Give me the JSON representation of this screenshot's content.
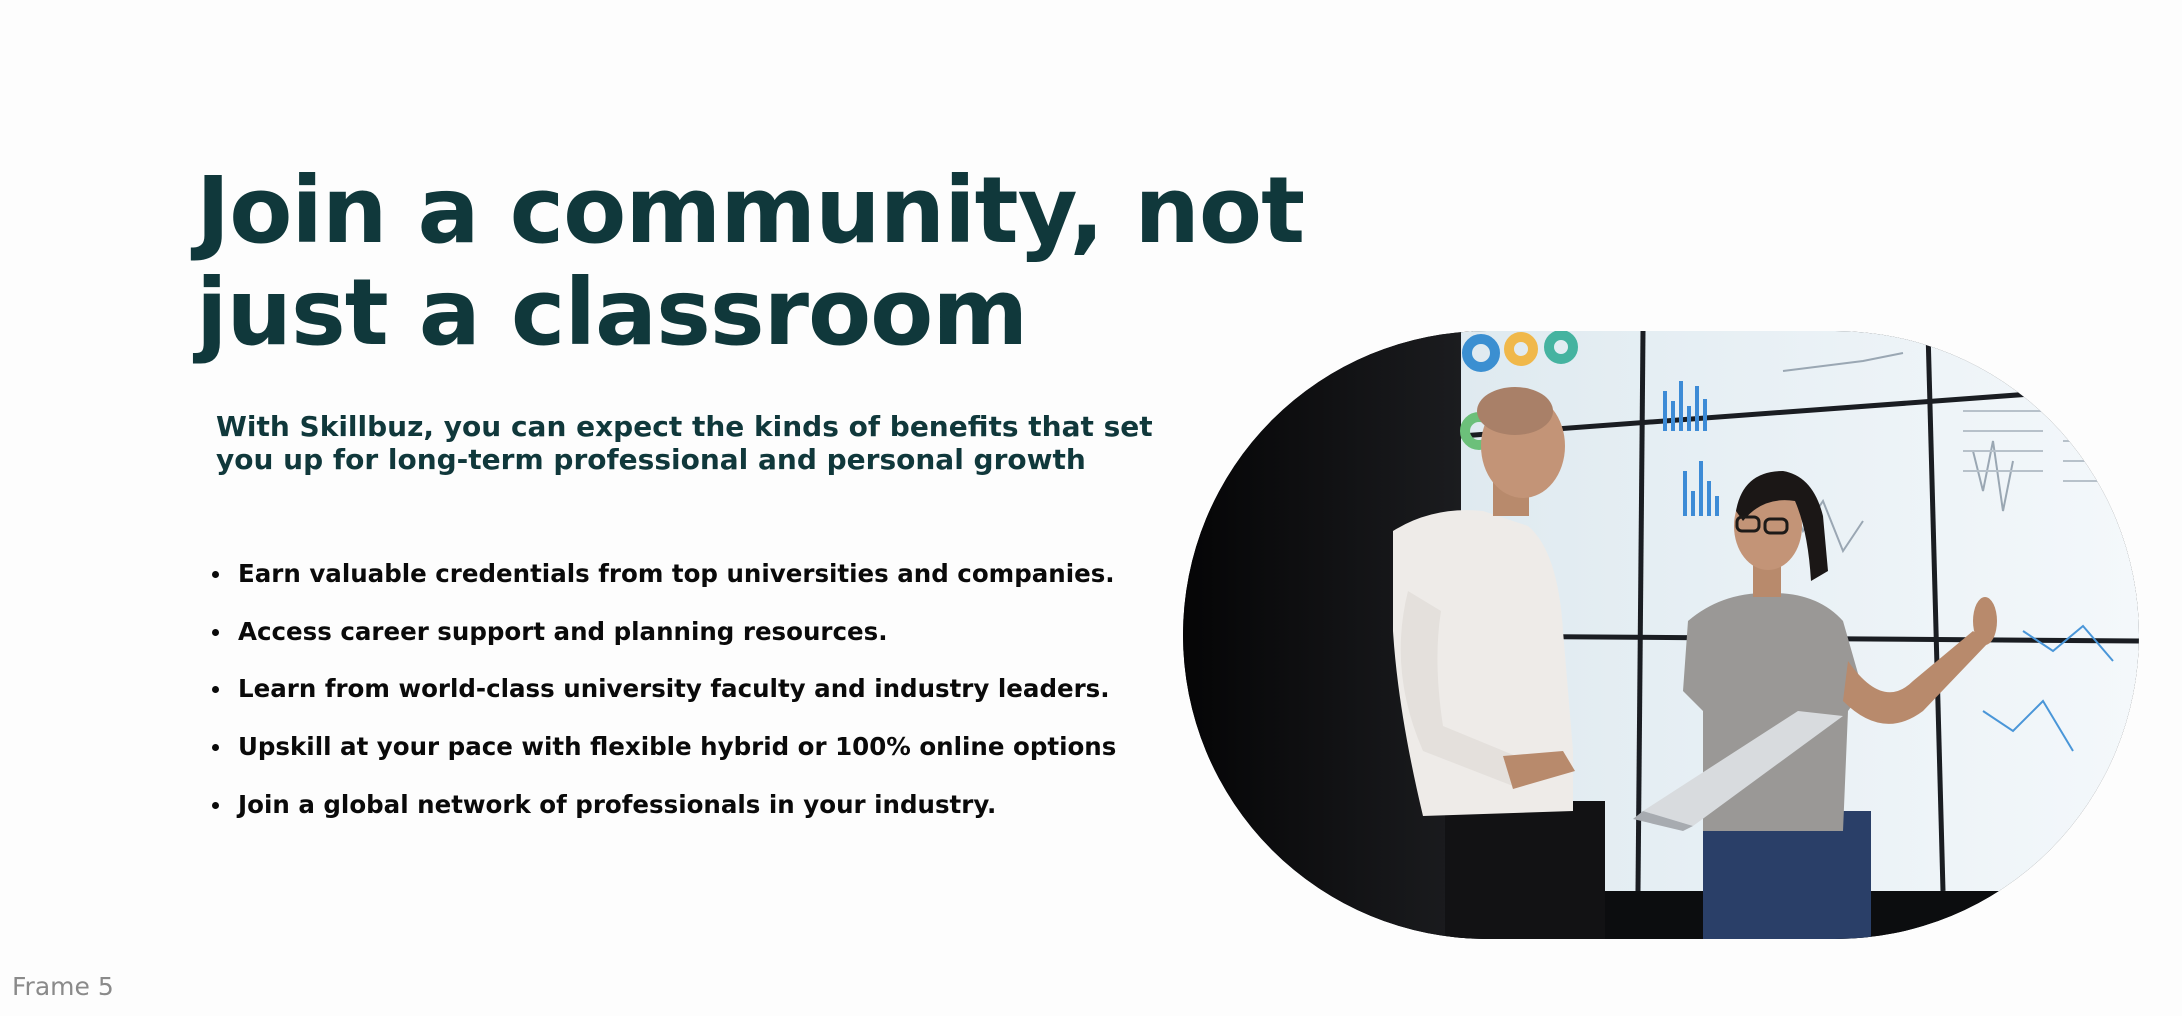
{
  "headline": {
    "line1": "Join a community, not",
    "line2": "just a classroom"
  },
  "subtitle": {
    "line1": "With Skillbuz, you can expect the kinds of benefits that set",
    "line2": "you up for long-term professional and personal growth"
  },
  "benefits": [
    "Earn valuable credentials from top universities and companies.",
    "Access career support and planning resources.",
    "Learn from world-class university faculty and industry leaders.",
    "Upskill at your pace with flexible hybrid or 100% online options",
    "Join a global network of professionals in your industry."
  ],
  "image": {
    "description": "photo-two-professionals-discussing-data-wall"
  },
  "frame_label": "Frame 5",
  "colors": {
    "heading": "#10383b",
    "body_text": "#0a0a0a",
    "background": "#fdfdfd",
    "frame_label": "#8a8a8a"
  }
}
